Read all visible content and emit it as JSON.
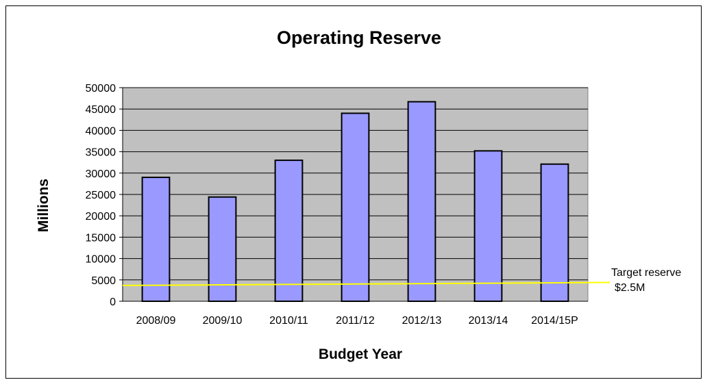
{
  "chart_data": {
    "type": "bar",
    "title": "Operating Reserve",
    "xlabel": "Budget Year",
    "ylabel": "Millions",
    "categories": [
      "2008/09",
      "2009/10",
      "2010/11",
      "2011/12",
      "2012/13",
      "2013/14",
      "2014/15P"
    ],
    "values": [
      29000,
      24400,
      33000,
      44000,
      46700,
      35200,
      32100
    ],
    "ylim": [
      0,
      50000
    ],
    "yticks": [
      0,
      5000,
      10000,
      15000,
      20000,
      25000,
      30000,
      35000,
      40000,
      45000,
      50000
    ],
    "grid": true,
    "target_line": {
      "label_line1": "Target reserve",
      "label_line2": "$2.5M",
      "y_start": 3700,
      "y_end": 4400
    },
    "colors": {
      "bar_fill": "#9999ff",
      "bar_stroke": "#000000",
      "plot_bg": "#c0c0c0",
      "target_line": "#ffff00"
    }
  }
}
